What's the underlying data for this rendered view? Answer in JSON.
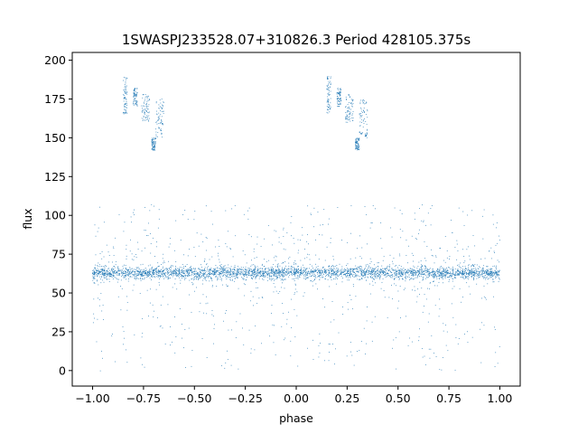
{
  "chart_data": {
    "type": "scatter",
    "title": "1SWASPJ233528.07+310826.3 Period 428105.375s",
    "xlabel": "phase",
    "ylabel": "flux",
    "xlim": [
      -1.1,
      1.1
    ],
    "ylim": [
      -10,
      205
    ],
    "x_ticks": [
      "−1.00",
      "−0.75",
      "−0.50",
      "−0.25",
      "0.00",
      "0.25",
      "0.50",
      "0.75",
      "1.00"
    ],
    "y_ticks": [
      "0",
      "25",
      "50",
      "75",
      "100",
      "125",
      "150",
      "175",
      "200"
    ],
    "x_tick_values": [
      -1.0,
      -0.75,
      -0.5,
      -0.25,
      0.0,
      0.25,
      0.5,
      0.75,
      1.0
    ],
    "y_tick_values": [
      0,
      25,
      50,
      75,
      100,
      125,
      150,
      175,
      200
    ],
    "grid": false,
    "point_color": "#1f77b4",
    "baseline_flux": 63,
    "phase_range": [
      -1.0,
      1.0
    ],
    "clusters": [
      {
        "x": [
          -0.85,
          -0.83
        ],
        "y": [
          165,
          190
        ]
      },
      {
        "x": [
          -0.8,
          -0.78
        ],
        "y": [
          170,
          182
        ]
      },
      {
        "x": [
          -0.76,
          -0.72
        ],
        "y": [
          160,
          178
        ]
      },
      {
        "x": [
          -0.71,
          -0.69
        ],
        "y": [
          142,
          150
        ]
      },
      {
        "x": [
          -0.69,
          -0.65
        ],
        "y": [
          150,
          175
        ]
      },
      {
        "x": [
          0.15,
          0.17
        ],
        "y": [
          165,
          190
        ]
      },
      {
        "x": [
          0.2,
          0.22
        ],
        "y": [
          170,
          182
        ]
      },
      {
        "x": [
          0.24,
          0.28
        ],
        "y": [
          160,
          178
        ]
      },
      {
        "x": [
          0.29,
          0.31
        ],
        "y": [
          142,
          150
        ]
      },
      {
        "x": [
          0.31,
          0.35
        ],
        "y": [
          150,
          175
        ]
      }
    ]
  }
}
